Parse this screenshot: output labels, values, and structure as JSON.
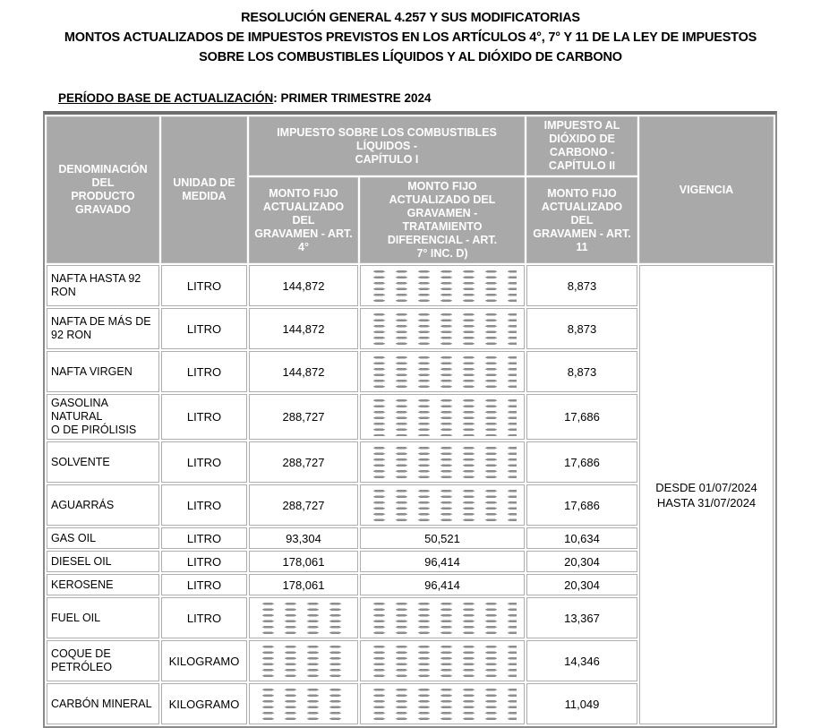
{
  "title": {
    "line1": "RESOLUCIÓN GENERAL 4.257 Y SUS MODIFICATORIAS",
    "line2": "MONTOS ACTUALIZADOS DE IMPUESTOS PREVISTOS EN LOS ARTÍCULOS 4°, 7° Y 11 DE LA LEY DE IMPUESTOS",
    "line3": "SOBRE LOS COMBUSTIBLES LÍQUIDOS Y AL DIÓXIDO DE CARBONO"
  },
  "period": {
    "label": "PERÍODO BASE DE ACTUALIZACIÓN",
    "value": ": PRIMER TRIMESTRE 2024"
  },
  "colors": {
    "header_bg": "#a9a9a9",
    "header_text": "#ffffff",
    "hatch_dash": "#8d8d8d",
    "cell_border": "#aeaeae",
    "outer_border": "#8a8a8a"
  },
  "table": {
    "headers": {
      "product": "DENOMINACIÓN DEL\nPRODUCTO\nGRAVADO",
      "unit": "UNIDAD DE\nMEDIDA",
      "fuels_group": "IMPUESTO SOBRE LOS COMBUSTIBLES\nLÍQUIDOS -\nCAPÍTULO I",
      "co2_group": "IMPUESTO AL\nDIÓXIDO DE\nCARBONO -\nCAPÍTULO II",
      "art4": "MONTO FIJO\nACTUALIZADO DEL\nGRAVAMEN - ART. 4°",
      "art7": "MONTO FIJO\nACTUALIZADO DEL\nGRAVAMEN -\nTRATAMIENTO\nDIFERENCIAL - ART.\n7° INC. D)",
      "art11": "MONTO FIJO\nACTUALIZADO DEL\nGRAVAMEN - ART.\n11",
      "vigencia": "VIGENCIA"
    },
    "rows": [
      {
        "product": "NAFTA HASTA 92\nRON",
        "unit": "LITRO",
        "art4": "144,872",
        "art7": null,
        "art11": "8,873"
      },
      {
        "product": "NAFTA DE MÁS DE\n92 RON",
        "unit": "LITRO",
        "art4": "144,872",
        "art7": null,
        "art11": "8,873"
      },
      {
        "product": "NAFTA VIRGEN",
        "unit": "LITRO",
        "art4": "144,872",
        "art7": null,
        "art11": "8,873"
      },
      {
        "product": "GASOLINA NATURAL\nO DE PIRÓLISIS",
        "unit": "LITRO",
        "art4": "288,727",
        "art7": null,
        "art11": "17,686"
      },
      {
        "product": "SOLVENTE",
        "unit": "LITRO",
        "art4": "288,727",
        "art7": null,
        "art11": "17,686"
      },
      {
        "product": "AGUARRÁS",
        "unit": "LITRO",
        "art4": "288,727",
        "art7": null,
        "art11": "17,686"
      },
      {
        "product": "GAS OIL",
        "unit": "LITRO",
        "art4": "93,304",
        "art7": "50,521",
        "art11": "10,634"
      },
      {
        "product": "DIESEL OIL",
        "unit": "LITRO",
        "art4": "178,061",
        "art7": "96,414",
        "art11": "20,304"
      },
      {
        "product": "KEROSENE",
        "unit": "LITRO",
        "art4": "178,061",
        "art7": "96,414",
        "art11": "20,304"
      },
      {
        "product": "FUEL OIL",
        "unit": "LITRO",
        "art4": null,
        "art7": null,
        "art11": "13,367"
      },
      {
        "product": "COQUE DE\nPETRÓLEO",
        "unit": "KILOGRAMO",
        "art4": null,
        "art7": null,
        "art11": "14,346"
      },
      {
        "product": "CARBÓN MINERAL",
        "unit": "KILOGRAMO",
        "art4": null,
        "art7": null,
        "art11": "11,049"
      }
    ],
    "vigencia": "DESDE 01/07/2024\nHASTA 31/07/2024"
  }
}
